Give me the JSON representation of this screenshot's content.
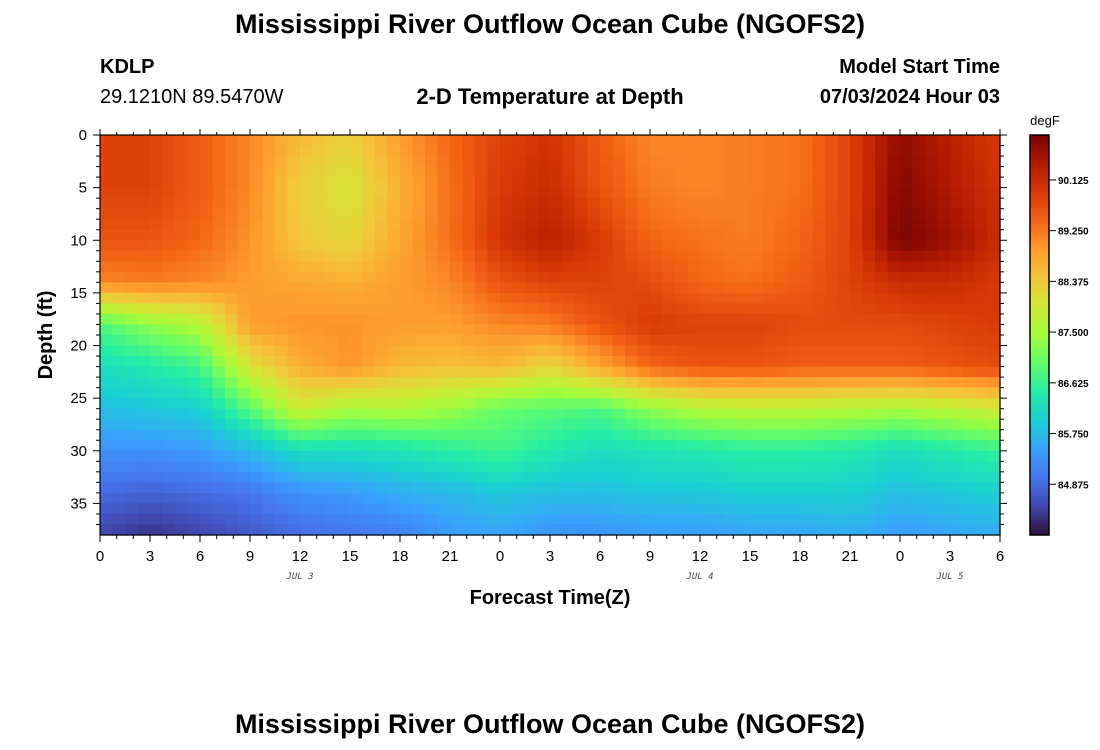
{
  "page": {
    "title_top": "Mississippi River Outflow Ocean Cube (NGOFS2)",
    "title_bottom": "Mississippi River Outflow Ocean Cube (NGOFS2)",
    "station": "KDLP",
    "coords": "29.1210N  89.5470W",
    "subtitle": "2-D Temperature at Depth",
    "model_start_label": "Model Start Time",
    "model_start_value": "07/03/2024 Hour 03"
  },
  "chart_data": {
    "type": "heatmap",
    "title": "2-D Temperature at Depth",
    "xlabel": "Forecast Time(Z)",
    "ylabel": "Depth (ft)",
    "x_tick_labels": [
      "0",
      "3",
      "6",
      "9",
      "12",
      "15",
      "18",
      "21",
      "0",
      "3",
      "6",
      "9",
      "12",
      "15",
      "18",
      "21",
      "0",
      "3",
      "6"
    ],
    "x_range_hours": [
      0,
      54
    ],
    "date_labels": [
      {
        "text": "JUL 3",
        "hour": 12
      },
      {
        "text": "JUL 4",
        "hour": 36
      },
      {
        "text": "JUL 5",
        "hour": 51
      }
    ],
    "y_ticks": [
      0,
      5,
      10,
      15,
      20,
      25,
      30,
      35
    ],
    "y_range_ft": [
      0,
      38
    ],
    "colorbar": {
      "unit": "degF",
      "min": 84.0,
      "max": 90.9,
      "ticks": [
        "90.125",
        "89.250",
        "88.375",
        "87.500",
        "86.625",
        "85.750",
        "84.875"
      ],
      "colors": [
        "#30123b",
        "#4145ab",
        "#4675ed",
        "#39a2fc",
        "#1bcfd4",
        "#24eca6",
        "#61fc6c",
        "#a4fc3b",
        "#d1e834",
        "#f3c63a",
        "#fe9b2d",
        "#f36315",
        "#d93806",
        "#b11901",
        "#7a0402"
      ]
    },
    "profile_hours": [
      0,
      3,
      6,
      9,
      12,
      15,
      18,
      21,
      24,
      27,
      30,
      33,
      36,
      39,
      42,
      45,
      48,
      51,
      54
    ],
    "depth_levels_ft": [
      0,
      5,
      10,
      14,
      18,
      22,
      26,
      30,
      34,
      38
    ],
    "temperature_degF": [
      [
        89.8,
        89.8,
        89.6,
        89.1,
        86.8,
        86.2,
        85.8,
        85.3,
        84.9,
        84.5
      ],
      [
        89.8,
        89.8,
        89.6,
        89.2,
        87.3,
        86.4,
        85.9,
        85.3,
        84.8,
        84.3
      ],
      [
        89.5,
        89.5,
        89.4,
        89.1,
        87.6,
        86.7,
        86.0,
        85.4,
        84.9,
        84.5
      ],
      [
        89.1,
        89.1,
        89.0,
        88.9,
        88.9,
        88.0,
        86.9,
        85.7,
        85.0,
        84.7
      ],
      [
        88.6,
        88.3,
        88.4,
        88.8,
        89.0,
        88.7,
        87.9,
        86.2,
        85.3,
        84.9
      ],
      [
        88.3,
        88.0,
        88.2,
        88.7,
        89.0,
        89.0,
        87.5,
        86.2,
        85.4,
        85.0
      ],
      [
        88.9,
        88.7,
        88.8,
        88.9,
        88.9,
        88.6,
        87.6,
        86.3,
        85.6,
        85.1
      ],
      [
        89.4,
        89.3,
        89.3,
        89.1,
        88.9,
        88.5,
        87.4,
        86.5,
        85.7,
        85.4
      ],
      [
        89.8,
        89.9,
        90.0,
        89.6,
        89.1,
        88.6,
        87.0,
        86.7,
        85.9,
        85.5
      ],
      [
        90.0,
        90.1,
        90.3,
        89.8,
        89.2,
        88.2,
        86.9,
        86.4,
        85.8,
        85.3
      ],
      [
        89.5,
        89.6,
        89.9,
        89.8,
        89.6,
        88.8,
        86.8,
        86.2,
        85.8,
        85.3
      ],
      [
        89.1,
        89.2,
        89.4,
        89.7,
        89.9,
        89.4,
        87.3,
        86.3,
        85.9,
        85.4
      ],
      [
        89.1,
        89.1,
        89.3,
        89.4,
        89.8,
        89.6,
        87.6,
        86.4,
        85.9,
        85.4
      ],
      [
        89.2,
        89.2,
        89.2,
        89.3,
        89.8,
        89.6,
        87.7,
        86.5,
        86.0,
        85.5
      ],
      [
        89.3,
        89.3,
        89.4,
        89.5,
        89.7,
        89.5,
        87.7,
        86.5,
        86.0,
        85.5
      ],
      [
        89.8,
        89.8,
        89.8,
        89.8,
        89.7,
        89.5,
        87.6,
        86.4,
        86.0,
        85.6
      ],
      [
        90.7,
        90.8,
        90.9,
        90.1,
        89.7,
        89.5,
        87.5,
        86.2,
        85.8,
        85.4
      ],
      [
        90.3,
        90.4,
        90.6,
        90.1,
        89.8,
        89.6,
        87.7,
        86.4,
        85.9,
        85.5
      ],
      [
        89.9,
        90.0,
        90.1,
        89.9,
        89.9,
        89.7,
        87.9,
        86.6,
        86.0,
        85.6
      ]
    ]
  }
}
